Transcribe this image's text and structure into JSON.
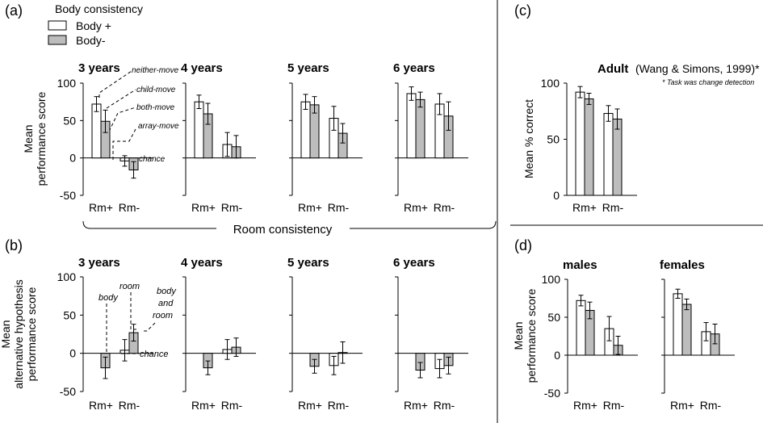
{
  "legend": {
    "title": "Body consistency",
    "items": [
      {
        "label": "Body +",
        "color": "#ffffff"
      },
      {
        "label": "Body-",
        "color": "#bdbdbd"
      }
    ]
  },
  "colors": {
    "body_plus": "#ffffff",
    "body_minus": "#bdbdbd",
    "stroke": "#000000"
  },
  "texts": {
    "room_consistency": "Room consistency",
    "chance": "chance",
    "adult_citation": "(Wang & Simons, 1999)*",
    "adult_note": "* Task was change detection"
  },
  "chart_data": [
    {
      "panel": "(a)",
      "type": "bar",
      "ylabel": [
        "Mean",
        "performance score"
      ],
      "ylim": [
        -50,
        100
      ],
      "yticks": [
        -50,
        0,
        50,
        100
      ],
      "categories": [
        "Rm+",
        "Rm-"
      ],
      "series_names": [
        "Body +",
        "Body-"
      ],
      "legend": "top-left",
      "annotations": [
        "neither-move",
        "child-move",
        "both-move",
        "array-move",
        "chance"
      ],
      "subplots": [
        {
          "title": "3 years",
          "values": [
            [
              72,
              49
            ],
            [
              -4,
              -16
            ]
          ],
          "errors": [
            [
              10,
              15
            ],
            [
              7,
              11
            ]
          ]
        },
        {
          "title": "4 years",
          "values": [
            [
              75,
              59
            ],
            [
              18,
              15
            ]
          ],
          "errors": [
            [
              9,
              14
            ],
            [
              16,
              15
            ]
          ]
        },
        {
          "title": "5 years",
          "values": [
            [
              75,
              71
            ],
            [
              53,
              33
            ]
          ],
          "errors": [
            [
              10,
              11
            ],
            [
              16,
              13
            ]
          ]
        },
        {
          "title": "6 years",
          "values": [
            [
              86,
              78
            ],
            [
              72,
              56
            ]
          ],
          "errors": [
            [
              9,
              10
            ],
            [
              14,
              19
            ]
          ]
        }
      ]
    },
    {
      "panel": "(b)",
      "type": "bar",
      "ylabel": [
        "Mean",
        "alternative hypothesis",
        "performance score"
      ],
      "ylim": [
        -50,
        100
      ],
      "yticks": [
        -50,
        0,
        50,
        100
      ],
      "categories": [
        "Rm+",
        "Rm-"
      ],
      "series_names": [
        "Body +",
        "Body-"
      ],
      "annotations": [
        "body",
        "room",
        "body and room",
        "chance"
      ],
      "subplots": [
        {
          "title": "3 years",
          "values": [
            [
              0,
              -19
            ],
            [
              4,
              27
            ]
          ],
          "errors": [
            [
              0,
              14
            ],
            [
              14,
              11
            ]
          ]
        },
        {
          "title": "4 years",
          "values": [
            [
              0,
              -19
            ],
            [
              5,
              8
            ]
          ],
          "errors": [
            [
              0,
              9
            ],
            [
              13,
              12
            ]
          ]
        },
        {
          "title": "5 years",
          "values": [
            [
              0,
              -17
            ],
            [
              -16,
              1
            ]
          ],
          "errors": [
            [
              0,
              9
            ],
            [
              12,
              14
            ]
          ]
        },
        {
          "title": "6 years",
          "values": [
            [
              0,
              -22
            ],
            [
              -20,
              -16
            ]
          ],
          "errors": [
            [
              0,
              10
            ],
            [
              12,
              11
            ]
          ]
        }
      ]
    },
    {
      "panel": "(c)",
      "type": "bar",
      "title": "Adult",
      "ylabel": [
        "Mean % correct"
      ],
      "ylim": [
        0,
        100
      ],
      "yticks": [
        0,
        50,
        100
      ],
      "categories": [
        "Rm+",
        "Rm-"
      ],
      "series_names": [
        "Body +",
        "Body-"
      ],
      "subplots": [
        {
          "title": "",
          "values": [
            [
              92,
              86
            ],
            [
              73,
              68
            ]
          ],
          "errors": [
            [
              5,
              5
            ],
            [
              7,
              9
            ]
          ]
        }
      ]
    },
    {
      "panel": "(d)",
      "type": "bar",
      "ylabel": [
        "Mean",
        "performance score"
      ],
      "ylim": [
        -50,
        100
      ],
      "yticks": [
        -50,
        0,
        50,
        100
      ],
      "categories": [
        "Rm+",
        "Rm-"
      ],
      "series_names": [
        "Body +",
        "Body-"
      ],
      "subplots": [
        {
          "title": "males",
          "values": [
            [
              72,
              59
            ],
            [
              35,
              13
            ]
          ],
          "errors": [
            [
              7,
              11
            ],
            [
              16,
              12
            ]
          ]
        },
        {
          "title": "females",
          "values": [
            [
              81,
              67
            ],
            [
              31,
              28
            ]
          ],
          "errors": [
            [
              6,
              7
            ],
            [
              12,
              13
            ]
          ]
        }
      ]
    }
  ]
}
